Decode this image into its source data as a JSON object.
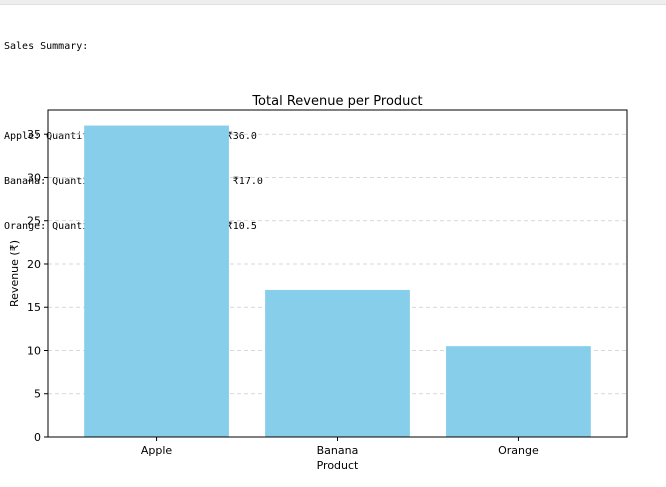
{
  "output": {
    "heading": "Sales Summary:",
    "lines": [
      "Apple: Quantity Sold = 18, Revenue = ₹36.0",
      "Banana: Quantity Sold = 17, Revenue = ₹17.0",
      "Orange: Quantity Sold = 7, Revenue = ₹10.5"
    ]
  },
  "chart_data": {
    "type": "bar",
    "title": "Total Revenue per Product",
    "xlabel": "Product",
    "ylabel": "Revenue (₹)",
    "categories": [
      "Apple",
      "Banana",
      "Orange"
    ],
    "values": [
      36.0,
      17.0,
      10.5
    ],
    "ylim": [
      0,
      37.8
    ],
    "yticks": [
      0,
      5,
      10,
      15,
      20,
      25,
      30,
      35
    ],
    "grid": "y-dashed",
    "bar_color": "#87ceeb",
    "grid_color": "#cccccc"
  }
}
